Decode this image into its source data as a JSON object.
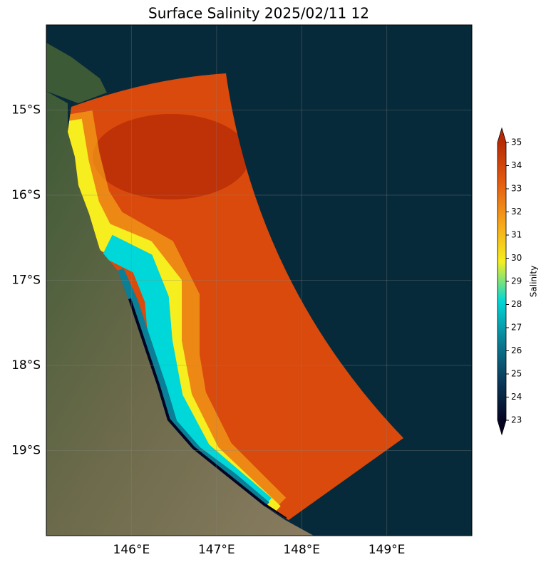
{
  "map": {
    "type": "salinity-map",
    "title": "Surface Salinity 2025/02/11 12",
    "xlim": [
      145,
      150
    ],
    "ylim": [
      -20,
      -14
    ],
    "xticks": [
      {
        "value": 146,
        "label": "146°E"
      },
      {
        "value": 147,
        "label": "147°E"
      },
      {
        "value": 148,
        "label": "148°E"
      },
      {
        "value": 149,
        "label": "149°E"
      }
    ],
    "yticks": [
      {
        "value": -15,
        "label": "15°S"
      },
      {
        "value": -16,
        "label": "16°S"
      },
      {
        "value": -17,
        "label": "17°S"
      },
      {
        "value": -18,
        "label": "18°S"
      },
      {
        "value": -19,
        "label": "19°S"
      }
    ],
    "grid": true,
    "colorbar": {
      "label": "Salinity",
      "lim": [
        23,
        35
      ],
      "ticks": [
        23,
        24,
        25,
        26,
        27,
        28,
        29,
        30,
        31,
        32,
        33,
        34,
        35
      ],
      "colors": [
        "#050523",
        "#0a3a5a",
        "#0a7f95",
        "#00d7d8",
        "#f6ee1e",
        "#f6a21a",
        "#e45a10",
        "#b82a05"
      ]
    }
  }
}
